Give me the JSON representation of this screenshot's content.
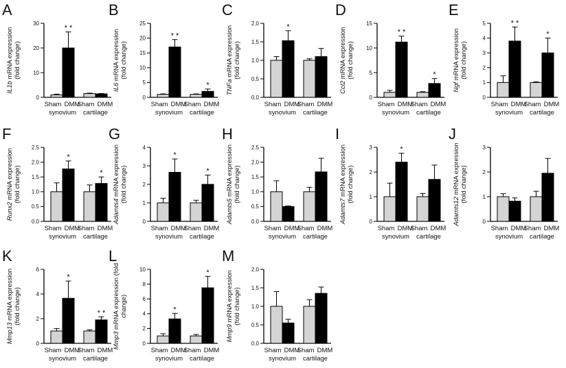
{
  "figure_name": "qPCR mRNA expression bar chart panels (Sham vs DMM, synovium and cartilage)",
  "shared": {
    "categories": [
      "Sham",
      "DMM"
    ],
    "groups": [
      "synovium",
      "cartilage"
    ],
    "bar_order": [
      "Sham synovium",
      "DMM synovium",
      "Sham cartilage",
      "DMM cartilage"
    ],
    "colors": {
      "sham_bar": "#d4d4d4",
      "dmm_bar": "#000000",
      "axis": "#000000",
      "background": "#ffffff"
    }
  },
  "chart_data": [
    {
      "panel": "A",
      "type": "bar",
      "gene": "IL1b",
      "ylabel_line1_rest": "mRNA expression",
      "ylabel_line2": "(fold change)",
      "ylim": [
        0,
        30
      ],
      "yticks": [
        "0",
        "10",
        "20",
        "30"
      ],
      "values": [
        1.0,
        20.0,
        1.5,
        1.4
      ],
      "errors": [
        0.3,
        6.5,
        0.2,
        0.15
      ],
      "sig": [
        "",
        "**",
        "",
        ""
      ]
    },
    {
      "panel": "B",
      "type": "bar",
      "gene": "IL6",
      "ylabel_line1_rest": "mRNA expression",
      "ylabel_line2": "(fold change)",
      "ylim": [
        0,
        25
      ],
      "yticks": [
        "0",
        "5",
        "10",
        "15",
        "20",
        "25"
      ],
      "values": [
        1.0,
        17.0,
        1.0,
        2.0
      ],
      "errors": [
        0.15,
        2.5,
        0.15,
        0.8
      ],
      "sig": [
        "",
        "**",
        "",
        "*"
      ]
    },
    {
      "panel": "C",
      "type": "bar",
      "gene": "TNFa",
      "ylabel_line1_rest": "mRNA expression",
      "ylabel_line2": "(fold change)",
      "ylim": [
        0,
        2
      ],
      "yticks": [
        "0.0",
        "0.5",
        "1.0",
        "1.5",
        "2.0"
      ],
      "values": [
        1.0,
        1.53,
        1.0,
        1.1
      ],
      "errors": [
        0.1,
        0.27,
        0.04,
        0.22
      ],
      "sig": [
        "",
        "*",
        "",
        ""
      ]
    },
    {
      "panel": "D",
      "type": "bar",
      "gene": "Ccl2",
      "ylabel_line1_rest": "mRNA expression",
      "ylabel_line2": "(fold change)",
      "ylim": [
        0,
        15
      ],
      "yticks": [
        "0",
        "5",
        "10",
        "15"
      ],
      "values": [
        1.0,
        11.2,
        1.0,
        2.8
      ],
      "errors": [
        0.4,
        1.2,
        0.15,
        1.0
      ],
      "sig": [
        "",
        "**",
        "",
        "*"
      ]
    },
    {
      "panel": "E",
      "type": "bar",
      "gene": "Ngf",
      "ylabel_line1_rest": "mRNA expression",
      "ylabel_line2": "(fold change)",
      "ylim": [
        0,
        5
      ],
      "yticks": [
        "0",
        "1",
        "2",
        "3",
        "4",
        "5"
      ],
      "values": [
        1.0,
        3.8,
        1.0,
        3.0
      ],
      "errors": [
        0.45,
        0.95,
        0.05,
        1.0
      ],
      "sig": [
        "",
        "**",
        "",
        "*"
      ]
    },
    {
      "panel": "F",
      "type": "bar",
      "gene": "Runx2",
      "ylabel_line1_rest": "mRNA expression",
      "ylabel_line2": "(fold change)",
      "ylim": [
        0,
        2.5
      ],
      "yticks": [
        "0.0",
        "0.5",
        "1.0",
        "1.5",
        "2.0",
        "2.5"
      ],
      "values": [
        1.0,
        1.77,
        1.0,
        1.28
      ],
      "errors": [
        0.3,
        0.27,
        0.23,
        0.22
      ],
      "sig": [
        "",
        "*",
        "",
        "*"
      ]
    },
    {
      "panel": "G",
      "type": "bar",
      "gene": "Adamts4",
      "ylabel_line1_rest": "mRNA expression",
      "ylabel_line2": "(fold change)",
      "ylim": [
        0,
        4
      ],
      "yticks": [
        "0",
        "1",
        "2",
        "3",
        "4"
      ],
      "values": [
        1.0,
        2.65,
        1.0,
        2.0
      ],
      "errors": [
        0.25,
        0.72,
        0.14,
        0.5
      ],
      "sig": [
        "",
        "*",
        "",
        "*"
      ]
    },
    {
      "panel": "H",
      "type": "bar",
      "gene": "Adamts5",
      "ylabel_line1_rest": "mRNA expression",
      "ylabel_line2": "(fold change)",
      "ylim": [
        0,
        2.5
      ],
      "yticks": [
        "0.0",
        "0.5",
        "1.0",
        "1.5",
        "2.0",
        "2.5"
      ],
      "values": [
        1.0,
        0.5,
        1.0,
        1.67
      ],
      "errors": [
        0.37,
        0.02,
        0.15,
        0.46
      ],
      "sig": [
        "",
        "",
        "",
        ""
      ]
    },
    {
      "panel": "I",
      "type": "bar",
      "gene": "Adamts7",
      "ylabel_line1_rest": "mRNA expression",
      "ylabel_line2": "(fold change)",
      "ylim": [
        0,
        3
      ],
      "yticks": [
        "0",
        "1",
        "2",
        "3"
      ],
      "values": [
        1.0,
        2.4,
        1.0,
        1.7
      ],
      "errors": [
        0.55,
        0.36,
        0.13,
        0.58
      ],
      "sig": [
        "",
        "*",
        "",
        ""
      ]
    },
    {
      "panel": "J",
      "type": "bar",
      "gene": "Adamts12",
      "ylabel_line1_rest": "mRNA expression",
      "ylabel_line2": "(fold change)",
      "ylim": [
        0,
        3
      ],
      "yticks": [
        "0",
        "1",
        "2",
        "3"
      ],
      "values": [
        1.0,
        0.82,
        1.0,
        1.95
      ],
      "errors": [
        0.12,
        0.13,
        0.22,
        0.6
      ],
      "sig": [
        "",
        "",
        "",
        ""
      ]
    },
    {
      "panel": "K",
      "type": "bar",
      "gene": "Mmp13",
      "ylabel_line1_rest": "mRNA expression",
      "ylabel_line2": "(fold change)",
      "ylim": [
        0,
        6
      ],
      "yticks": [
        "0",
        "2",
        "4",
        "6"
      ],
      "values": [
        1.0,
        3.65,
        1.0,
        1.9
      ],
      "errors": [
        0.2,
        1.4,
        0.1,
        0.25
      ],
      "sig": [
        "",
        "*",
        "",
        "**"
      ]
    },
    {
      "panel": "L",
      "type": "bar",
      "gene": "Mmp3",
      "ylabel_line1_rest": "mRNA expression (fold",
      "ylabel_line2": "change)",
      "ylim": [
        0,
        10
      ],
      "yticks": [
        "0",
        "2",
        "4",
        "6",
        "8",
        "10"
      ],
      "values": [
        1.0,
        3.3,
        1.0,
        7.5
      ],
      "errors": [
        0.3,
        0.75,
        0.2,
        1.55
      ],
      "sig": [
        "",
        "*",
        "",
        "*"
      ]
    },
    {
      "panel": "M",
      "type": "bar",
      "gene": "Mmp9",
      "ylabel_line1_rest": "mRNA expression",
      "ylabel_line2": "(fold change)",
      "ylim": [
        0,
        2
      ],
      "yticks": [
        "0.0",
        "0.5",
        "1.0",
        "1.5",
        "2.0"
      ],
      "values": [
        1.0,
        0.55,
        1.0,
        1.35
      ],
      "errors": [
        0.4,
        0.1,
        0.18,
        0.17
      ],
      "sig": [
        "",
        "",
        "",
        ""
      ]
    }
  ]
}
